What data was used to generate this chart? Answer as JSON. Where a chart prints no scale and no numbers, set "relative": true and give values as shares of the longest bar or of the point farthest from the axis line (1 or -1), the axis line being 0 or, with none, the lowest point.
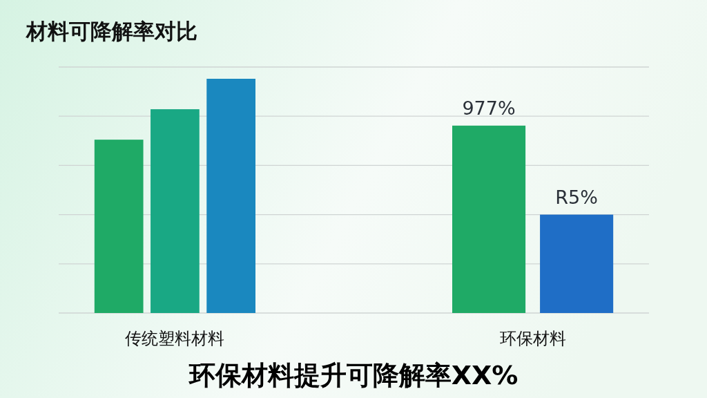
{
  "chart_data": {
    "type": "bar",
    "title": "材料可降解率对比",
    "relative": true,
    "grid": "y",
    "categories": [
      "传统塑料材料",
      "环保材料"
    ],
    "series": [
      {
        "color": "#1faa66",
        "values": [
          0.74,
          0.8
        ]
      },
      {
        "colors": [
          "#19a884",
          "#1f6ec6"
        ],
        "values": [
          0.87,
          0.42
        ]
      },
      {
        "color": "#1a88bf",
        "values": [
          1,
          null
        ]
      }
    ],
    "annotations": [
      "977%",
      "R5%",
      "环保材料提升可降解率XX%"
    ]
  }
}
